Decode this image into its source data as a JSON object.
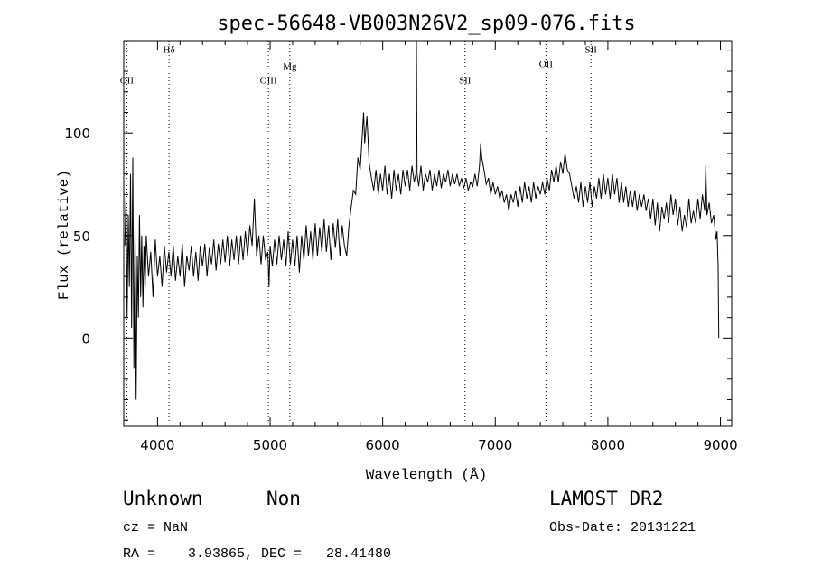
{
  "chart_data": {
    "type": "line",
    "title": "spec-56648-VB003N26V2_sp09-076.fits",
    "xlabel": "Wavelength (Å)",
    "ylabel": "Flux (relative)",
    "xlim": [
      3700,
      9100
    ],
    "ylim": [
      -43,
      145
    ],
    "x_ticks": [
      4000,
      5000,
      6000,
      7000,
      8000,
      9000
    ],
    "x_tick_labels": [
      "4000",
      "5000",
      "6000",
      "7000",
      "8000",
      "9000"
    ],
    "y_ticks": [
      0,
      50,
      100
    ],
    "y_tick_labels": [
      "0",
      "50",
      "100"
    ],
    "x_minor_step": 200,
    "y_minor_step": 10,
    "lines": [
      {
        "label": "OII",
        "x": 3727,
        "label_y": 124
      },
      {
        "label": "Hδ",
        "x": 4102,
        "label_y": 139
      },
      {
        "label": "OIII",
        "x": 4985,
        "label_y": 124
      },
      {
        "label": "Mg",
        "x": 5175,
        "label_y": 131
      },
      {
        "label": "SII",
        "x": 6731,
        "label_y": 124
      },
      {
        "label": "OII",
        "x": 7450,
        "label_y": 132
      },
      {
        "label": "SII",
        "x": 7850,
        "label_y": 139
      }
    ],
    "series": [
      {
        "name": "flux",
        "points": [
          [
            3710,
            45
          ],
          [
            3720,
            70
          ],
          [
            3730,
            10
          ],
          [
            3740,
            60
          ],
          [
            3750,
            25
          ],
          [
            3760,
            80
          ],
          [
            3770,
            5
          ],
          [
            3780,
            88
          ],
          [
            3790,
            -15
          ],
          [
            3800,
            55
          ],
          [
            3810,
            -30
          ],
          [
            3820,
            40
          ],
          [
            3830,
            10
          ],
          [
            3840,
            60
          ],
          [
            3850,
            20
          ],
          [
            3860,
            50
          ],
          [
            3870,
            15
          ],
          [
            3880,
            45
          ],
          [
            3890,
            25
          ],
          [
            3900,
            50
          ],
          [
            3920,
            30
          ],
          [
            3940,
            42
          ],
          [
            3960,
            20
          ],
          [
            3980,
            48
          ],
          [
            4000,
            30
          ],
          [
            4020,
            40
          ],
          [
            4040,
            25
          ],
          [
            4060,
            45
          ],
          [
            4080,
            32
          ],
          [
            4100,
            42
          ],
          [
            4120,
            30
          ],
          [
            4140,
            45
          ],
          [
            4160,
            28
          ],
          [
            4180,
            40
          ],
          [
            4200,
            30
          ],
          [
            4220,
            46
          ],
          [
            4240,
            25
          ],
          [
            4260,
            40
          ],
          [
            4280,
            33
          ],
          [
            4300,
            45
          ],
          [
            4320,
            30
          ],
          [
            4340,
            42
          ],
          [
            4360,
            28
          ],
          [
            4380,
            45
          ],
          [
            4400,
            35
          ],
          [
            4420,
            46
          ],
          [
            4440,
            30
          ],
          [
            4460,
            44
          ],
          [
            4480,
            36
          ],
          [
            4500,
            48
          ],
          [
            4520,
            33
          ],
          [
            4540,
            46
          ],
          [
            4560,
            36
          ],
          [
            4580,
            48
          ],
          [
            4600,
            37
          ],
          [
            4620,
            50
          ],
          [
            4640,
            35
          ],
          [
            4660,
            48
          ],
          [
            4680,
            38
          ],
          [
            4700,
            50
          ],
          [
            4720,
            36
          ],
          [
            4740,
            50
          ],
          [
            4760,
            38
          ],
          [
            4780,
            52
          ],
          [
            4800,
            40
          ],
          [
            4820,
            55
          ],
          [
            4840,
            45
          ],
          [
            4860,
            68
          ],
          [
            4880,
            40
          ],
          [
            4900,
            50
          ],
          [
            4920,
            36
          ],
          [
            4940,
            50
          ],
          [
            4960,
            38
          ],
          [
            4980,
            42
          ],
          [
            4990,
            25
          ],
          [
            5000,
            45
          ],
          [
            5020,
            35
          ],
          [
            5040,
            48
          ],
          [
            5060,
            36
          ],
          [
            5080,
            50
          ],
          [
            5100,
            38
          ],
          [
            5120,
            48
          ],
          [
            5140,
            35
          ],
          [
            5160,
            52
          ],
          [
            5180,
            36
          ],
          [
            5200,
            48
          ],
          [
            5220,
            35
          ],
          [
            5240,
            50
          ],
          [
            5260,
            32
          ],
          [
            5280,
            50
          ],
          [
            5300,
            38
          ],
          [
            5320,
            55
          ],
          [
            5340,
            40
          ],
          [
            5360,
            52
          ],
          [
            5380,
            38
          ],
          [
            5400,
            56
          ],
          [
            5420,
            40
          ],
          [
            5440,
            54
          ],
          [
            5460,
            42
          ],
          [
            5480,
            58
          ],
          [
            5500,
            42
          ],
          [
            5520,
            55
          ],
          [
            5540,
            38
          ],
          [
            5560,
            56
          ],
          [
            5580,
            44
          ],
          [
            5600,
            58
          ],
          [
            5620,
            40
          ],
          [
            5640,
            55
          ],
          [
            5660,
            45
          ],
          [
            5680,
            40
          ],
          [
            5700,
            55
          ],
          [
            5720,
            64
          ],
          [
            5740,
            72
          ],
          [
            5760,
            70
          ],
          [
            5780,
            88
          ],
          [
            5800,
            82
          ],
          [
            5820,
            100
          ],
          [
            5830,
            110
          ],
          [
            5840,
            95
          ],
          [
            5860,
            108
          ],
          [
            5880,
            85
          ],
          [
            5900,
            78
          ],
          [
            5920,
            72
          ],
          [
            5940,
            82
          ],
          [
            5960,
            70
          ],
          [
            5980,
            80
          ],
          [
            6000,
            72
          ],
          [
            6020,
            84
          ],
          [
            6040,
            70
          ],
          [
            6060,
            80
          ],
          [
            6080,
            68
          ],
          [
            6100,
            82
          ],
          [
            6120,
            72
          ],
          [
            6140,
            80
          ],
          [
            6160,
            70
          ],
          [
            6180,
            82
          ],
          [
            6200,
            74
          ],
          [
            6220,
            82
          ],
          [
            6240,
            72
          ],
          [
            6260,
            84
          ],
          [
            6280,
            76
          ],
          [
            6295,
            80
          ],
          [
            6300,
            145
          ],
          [
            6305,
            80
          ],
          [
            6320,
            74
          ],
          [
            6340,
            84
          ],
          [
            6360,
            72
          ],
          [
            6380,
            80
          ],
          [
            6400,
            76
          ],
          [
            6420,
            82
          ],
          [
            6440,
            72
          ],
          [
            6460,
            80
          ],
          [
            6480,
            74
          ],
          [
            6500,
            82
          ],
          [
            6520,
            73
          ],
          [
            6540,
            80
          ],
          [
            6560,
            76
          ],
          [
            6580,
            82
          ],
          [
            6600,
            74
          ],
          [
            6620,
            80
          ],
          [
            6640,
            75
          ],
          [
            6660,
            80
          ],
          [
            6680,
            74
          ],
          [
            6700,
            78
          ],
          [
            6720,
            73
          ],
          [
            6740,
            78
          ],
          [
            6760,
            72
          ],
          [
            6780,
            76
          ],
          [
            6800,
            74
          ],
          [
            6820,
            80
          ],
          [
            6840,
            74
          ],
          [
            6860,
            84
          ],
          [
            6870,
            95
          ],
          [
            6880,
            88
          ],
          [
            6900,
            82
          ],
          [
            6920,
            75
          ],
          [
            6940,
            78
          ],
          [
            6960,
            70
          ],
          [
            6980,
            76
          ],
          [
            7000,
            70
          ],
          [
            7020,
            74
          ],
          [
            7040,
            68
          ],
          [
            7060,
            72
          ],
          [
            7080,
            66
          ],
          [
            7100,
            70
          ],
          [
            7120,
            62
          ],
          [
            7140,
            70
          ],
          [
            7160,
            66
          ],
          [
            7180,
            72
          ],
          [
            7200,
            64
          ],
          [
            7220,
            74
          ],
          [
            7240,
            66
          ],
          [
            7260,
            76
          ],
          [
            7280,
            68
          ],
          [
            7300,
            74
          ],
          [
            7320,
            66
          ],
          [
            7340,
            76
          ],
          [
            7360,
            68
          ],
          [
            7380,
            74
          ],
          [
            7400,
            70
          ],
          [
            7420,
            76
          ],
          [
            7440,
            70
          ],
          [
            7460,
            78
          ],
          [
            7480,
            72
          ],
          [
            7500,
            82
          ],
          [
            7520,
            76
          ],
          [
            7540,
            84
          ],
          [
            7560,
            76
          ],
          [
            7580,
            86
          ],
          [
            7600,
            80
          ],
          [
            7620,
            90
          ],
          [
            7640,
            82
          ],
          [
            7660,
            80
          ],
          [
            7680,
            74
          ],
          [
            7700,
            68
          ],
          [
            7720,
            74
          ],
          [
            7740,
            66
          ],
          [
            7760,
            76
          ],
          [
            7780,
            64
          ],
          [
            7800,
            74
          ],
          [
            7820,
            66
          ],
          [
            7840,
            76
          ],
          [
            7860,
            64
          ],
          [
            7880,
            74
          ],
          [
            7900,
            68
          ],
          [
            7920,
            78
          ],
          [
            7940,
            68
          ],
          [
            7960,
            80
          ],
          [
            7980,
            70
          ],
          [
            8000,
            78
          ],
          [
            8020,
            68
          ],
          [
            8040,
            80
          ],
          [
            8060,
            70
          ],
          [
            8080,
            78
          ],
          [
            8100,
            66
          ],
          [
            8120,
            76
          ],
          [
            8140,
            66
          ],
          [
            8160,
            74
          ],
          [
            8180,
            64
          ],
          [
            8200,
            72
          ],
          [
            8220,
            64
          ],
          [
            8240,
            72
          ],
          [
            8260,
            62
          ],
          [
            8280,
            70
          ],
          [
            8300,
            64
          ],
          [
            8320,
            70
          ],
          [
            8340,
            62
          ],
          [
            8360,
            68
          ],
          [
            8380,
            58
          ],
          [
            8400,
            68
          ],
          [
            8420,
            55
          ],
          [
            8440,
            66
          ],
          [
            8460,
            52
          ],
          [
            8480,
            64
          ],
          [
            8500,
            58
          ],
          [
            8520,
            66
          ],
          [
            8540,
            56
          ],
          [
            8560,
            70
          ],
          [
            8580,
            60
          ],
          [
            8600,
            68
          ],
          [
            8620,
            55
          ],
          [
            8640,
            64
          ],
          [
            8660,
            52
          ],
          [
            8680,
            60
          ],
          [
            8700,
            54
          ],
          [
            8720,
            68
          ],
          [
            8740,
            56
          ],
          [
            8760,
            62
          ],
          [
            8780,
            56
          ],
          [
            8800,
            68
          ],
          [
            8820,
            58
          ],
          [
            8840,
            70
          ],
          [
            8860,
            62
          ],
          [
            8870,
            84
          ],
          [
            8880,
            60
          ],
          [
            8900,
            66
          ],
          [
            8920,
            56
          ],
          [
            8940,
            60
          ],
          [
            8960,
            48
          ],
          [
            8970,
            52
          ],
          [
            8980,
            35
          ],
          [
            8985,
            0
          ]
        ]
      }
    ]
  },
  "footer": {
    "object_class": "Unknown",
    "object_subclass": "Non",
    "survey": "LAMOST DR2",
    "cz_text": "cz = NaN",
    "obs_date_text": "Obs-Date: 20131221",
    "coords_text": "RA =    3.93865, DEC =   28.41480"
  }
}
